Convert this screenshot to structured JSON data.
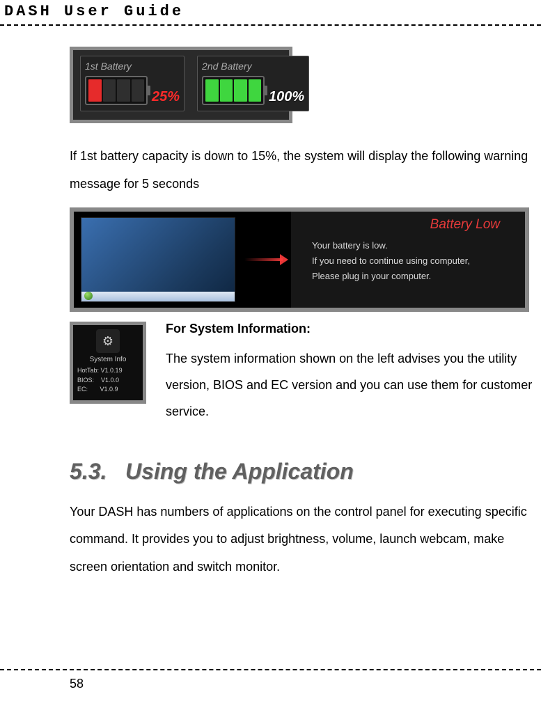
{
  "header": {
    "title": "DASH  User  Guide"
  },
  "figure1": {
    "battery1": {
      "label": "1st Battery",
      "percent_text": "25%",
      "percent_value": 25,
      "segments": 4,
      "filled": 1,
      "fill_color": "#e62b2b",
      "empty_color": "#2f2f2f",
      "text_color": "#ff2a2a"
    },
    "battery2": {
      "label": "2nd Battery",
      "percent_text": "100%",
      "percent_value": 100,
      "segments": 4,
      "filled": 4,
      "fill_color": "#3fd63f",
      "empty_color": "#2f2f2f",
      "text_color": "#ffffff"
    },
    "frame_border": "#888888",
    "frame_bg": "#2a2a2a"
  },
  "paragraph1": "If 1st battery capacity is down to 15%, the system will display the following warning message for 5 seconds",
  "figure2": {
    "warning_title": "Battery Low",
    "warning_title_color": "#e83a3a",
    "line1": "Your battery is low.",
    "line2": "If you need to continue using computer,",
    "line3": "Please plug in your computer.",
    "arrow_color": "#ff3c3c",
    "panel_bg": "#171717",
    "desktop_bg_from": "#3a6fb0",
    "desktop_bg_to": "#0e2540"
  },
  "sysinfo": {
    "icon_caption": "System Info",
    "rows": {
      "hottab_label": "HotTab:",
      "hottab_value": "V1.0.19",
      "bios_label": "BIOS:",
      "bios_value": "V1.0.0",
      "ec_label": "EC:",
      "ec_value": "V1.0.9"
    },
    "heading": "For System Information:",
    "paragraph": "The system information shown on the left advises you the utility version, BIOS and EC version and you can use them for customer service."
  },
  "section": {
    "number": "5.3.",
    "title": "Using the Application",
    "heading_color": "#606060",
    "paragraph": "Your DASH has numbers of applications on the control panel for executing specific command. It provides you to adjust brightness, volume, launch webcam, make screen orientation and switch monitor."
  },
  "page_number": "58"
}
